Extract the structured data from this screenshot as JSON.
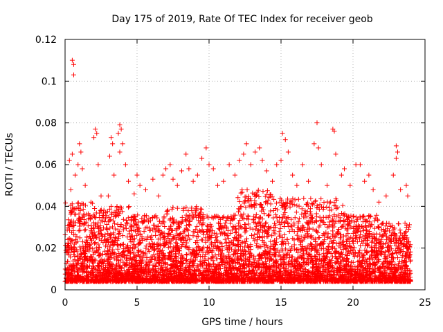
{
  "chart_data": {
    "type": "scatter",
    "title": "Day 175 of 2019, Rate Of TEC Index for receiver geob",
    "xlabel": "GPS time / hours",
    "ylabel": "ROTI / TECUs",
    "xlim": [
      0,
      25
    ],
    "ylim": [
      0,
      0.12
    ],
    "xticks": [
      0,
      5,
      10,
      15,
      20,
      25
    ],
    "xtick_labels": [
      "0",
      "5",
      "10",
      "15",
      "20",
      "25"
    ],
    "yticks": [
      0,
      0.02,
      0.04,
      0.06,
      0.08,
      0.1,
      0.12
    ],
    "ytick_labels": [
      "0",
      "0.02",
      "0.04",
      "0.06",
      "0.08",
      "0.1",
      "0.12"
    ],
    "grid": true,
    "marker": "+",
    "marker_color": "#ff0000",
    "series": [
      {
        "name": "ROTI",
        "points": [
          [
            0.5,
            0.11
          ],
          [
            0.6,
            0.108
          ],
          [
            0.6,
            0.103
          ],
          [
            0.3,
            0.062
          ],
          [
            0.5,
            0.065
          ],
          [
            0.7,
            0.055
          ],
          [
            1.0,
            0.07
          ],
          [
            1.1,
            0.066
          ],
          [
            0.9,
            0.06
          ],
          [
            1.2,
            0.058
          ],
          [
            1.4,
            0.05
          ],
          [
            0.4,
            0.048
          ],
          [
            2.1,
            0.077
          ],
          [
            2.2,
            0.075
          ],
          [
            2.0,
            0.073
          ],
          [
            2.3,
            0.06
          ],
          [
            2.5,
            0.045
          ],
          [
            1.8,
            0.042
          ],
          [
            3.2,
            0.073
          ],
          [
            3.3,
            0.07
          ],
          [
            3.1,
            0.064
          ],
          [
            3.4,
            0.055
          ],
          [
            3.0,
            0.045
          ],
          [
            3.8,
            0.079
          ],
          [
            3.9,
            0.077
          ],
          [
            3.7,
            0.075
          ],
          [
            4.0,
            0.07
          ],
          [
            3.8,
            0.066
          ],
          [
            4.2,
            0.06
          ],
          [
            4.4,
            0.052
          ],
          [
            5.0,
            0.055
          ],
          [
            5.2,
            0.05
          ],
          [
            4.8,
            0.046
          ],
          [
            5.6,
            0.048
          ],
          [
            6.1,
            0.053
          ],
          [
            6.5,
            0.045
          ],
          [
            6.8,
            0.055
          ],
          [
            7.0,
            0.058
          ],
          [
            7.3,
            0.06
          ],
          [
            7.5,
            0.053
          ],
          [
            7.8,
            0.05
          ],
          [
            8.1,
            0.057
          ],
          [
            8.4,
            0.065
          ],
          [
            8.6,
            0.058
          ],
          [
            8.9,
            0.052
          ],
          [
            9.2,
            0.055
          ],
          [
            9.5,
            0.063
          ],
          [
            9.8,
            0.068
          ],
          [
            10.0,
            0.06
          ],
          [
            10.3,
            0.058
          ],
          [
            10.6,
            0.05
          ],
          [
            11.0,
            0.052
          ],
          [
            11.4,
            0.06
          ],
          [
            11.8,
            0.055
          ],
          [
            12.1,
            0.062
          ],
          [
            12.4,
            0.065
          ],
          [
            12.6,
            0.07
          ],
          [
            12.9,
            0.06
          ],
          [
            13.2,
            0.066
          ],
          [
            13.5,
            0.068
          ],
          [
            13.7,
            0.062
          ],
          [
            14.0,
            0.057
          ],
          [
            14.4,
            0.052
          ],
          [
            14.7,
            0.06
          ],
          [
            15.0,
            0.062
          ],
          [
            15.1,
            0.075
          ],
          [
            15.3,
            0.072
          ],
          [
            15.5,
            0.066
          ],
          [
            15.8,
            0.055
          ],
          [
            16.1,
            0.05
          ],
          [
            16.5,
            0.06
          ],
          [
            16.9,
            0.052
          ],
          [
            17.3,
            0.07
          ],
          [
            17.5,
            0.08
          ],
          [
            17.6,
            0.068
          ],
          [
            17.8,
            0.06
          ],
          [
            18.2,
            0.05
          ],
          [
            18.6,
            0.077
          ],
          [
            18.7,
            0.076
          ],
          [
            18.8,
            0.065
          ],
          [
            19.2,
            0.055
          ],
          [
            19.4,
            0.058
          ],
          [
            19.8,
            0.05
          ],
          [
            20.2,
            0.06
          ],
          [
            20.5,
            0.06
          ],
          [
            20.8,
            0.052
          ],
          [
            21.1,
            0.055
          ],
          [
            21.4,
            0.048
          ],
          [
            21.8,
            0.042
          ],
          [
            22.3,
            0.045
          ],
          [
            22.8,
            0.055
          ],
          [
            23.0,
            0.069
          ],
          [
            23.1,
            0.066
          ],
          [
            23.0,
            0.063
          ],
          [
            23.3,
            0.048
          ],
          [
            23.7,
            0.05
          ],
          [
            23.8,
            0.045
          ]
        ],
        "baseline_segments": [
          {
            "x_range": [
              0.0,
              2.0
            ],
            "y_low": 0.004,
            "y_high": 0.042
          },
          {
            "x_range": [
              2.0,
              4.5
            ],
            "y_low": 0.004,
            "y_high": 0.04
          },
          {
            "x_range": [
              4.5,
              7.0
            ],
            "y_low": 0.004,
            "y_high": 0.036
          },
          {
            "x_range": [
              7.0,
              9.5
            ],
            "y_low": 0.004,
            "y_high": 0.04
          },
          {
            "x_range": [
              9.5,
              12.0
            ],
            "y_low": 0.004,
            "y_high": 0.036
          },
          {
            "x_range": [
              12.0,
              14.5
            ],
            "y_low": 0.004,
            "y_high": 0.048
          },
          {
            "x_range": [
              14.5,
              17.0
            ],
            "y_low": 0.004,
            "y_high": 0.044
          },
          {
            "x_range": [
              17.0,
              19.5
            ],
            "y_low": 0.004,
            "y_high": 0.044
          },
          {
            "x_range": [
              19.5,
              22.0
            ],
            "y_low": 0.004,
            "y_high": 0.036
          },
          {
            "x_range": [
              22.0,
              24.0
            ],
            "y_low": 0.004,
            "y_high": 0.032
          }
        ]
      }
    ]
  }
}
